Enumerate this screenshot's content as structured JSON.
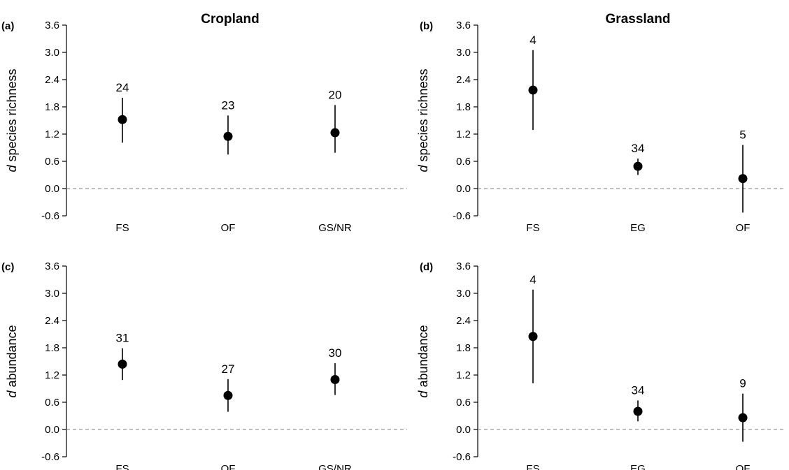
{
  "chart_data": [
    {
      "type": "scatter",
      "panel_tag": "(a)",
      "title": "Cropland",
      "ylabel_italic": "d",
      "ylabel_rest": " species richness",
      "ylim": [
        -0.6,
        3.6
      ],
      "yticks": [
        "3.6",
        "3.0",
        "2.4",
        "1.8",
        "1.2",
        "0.6",
        "0.0",
        "-0.6"
      ],
      "reference_line": 0,
      "categories": [
        "FS",
        "OF",
        "GS/NR"
      ],
      "values": [
        1.52,
        1.15,
        1.23
      ],
      "lower": [
        1.01,
        0.75,
        0.79
      ],
      "upper": [
        2.0,
        1.61,
        1.84
      ],
      "n": [
        "24",
        "23",
        "20"
      ]
    },
    {
      "type": "scatter",
      "panel_tag": "(b)",
      "title": "Grassland",
      "ylabel_italic": "d",
      "ylabel_rest": " species richness",
      "ylim": [
        -0.6,
        3.6
      ],
      "yticks": [
        "3.6",
        "3.0",
        "2.4",
        "1.8",
        "1.2",
        "0.6",
        "0.0",
        "-0.6"
      ],
      "reference_line": 0,
      "categories": [
        "FS",
        "EG",
        "OF"
      ],
      "values": [
        2.17,
        0.49,
        0.22
      ],
      "lower": [
        1.29,
        0.3,
        -0.53
      ],
      "upper": [
        3.05,
        0.66,
        0.96
      ],
      "n": [
        "4",
        "34",
        "5"
      ]
    },
    {
      "type": "scatter",
      "panel_tag": "(c)",
      "title": "",
      "ylabel_italic": "d",
      "ylabel_rest": " abundance",
      "ylim": [
        -0.6,
        3.6
      ],
      "yticks": [
        "3.6",
        "3.0",
        "2.4",
        "1.8",
        "1.2",
        "0.6",
        "0.0",
        "-0.6"
      ],
      "reference_line": 0,
      "categories": [
        "FS",
        "OF",
        "GS/NR"
      ],
      "values": [
        1.44,
        0.75,
        1.1
      ],
      "lower": [
        1.09,
        0.39,
        0.76
      ],
      "upper": [
        1.79,
        1.11,
        1.46
      ],
      "n": [
        "31",
        "27",
        "30"
      ]
    },
    {
      "type": "scatter",
      "panel_tag": "(d)",
      "title": "",
      "ylabel_italic": "d",
      "ylabel_rest": " abundance",
      "ylim": [
        -0.6,
        3.6
      ],
      "yticks": [
        "3.6",
        "3.0",
        "2.4",
        "1.8",
        "1.2",
        "0.6",
        "0.0",
        "-0.6"
      ],
      "reference_line": 0,
      "categories": [
        "FS",
        "EG",
        "OF"
      ],
      "values": [
        2.05,
        0.4,
        0.26
      ],
      "lower": [
        1.02,
        0.18,
        -0.27
      ],
      "upper": [
        3.08,
        0.64,
        0.79
      ],
      "n": [
        "4",
        "34",
        "9"
      ]
    }
  ]
}
